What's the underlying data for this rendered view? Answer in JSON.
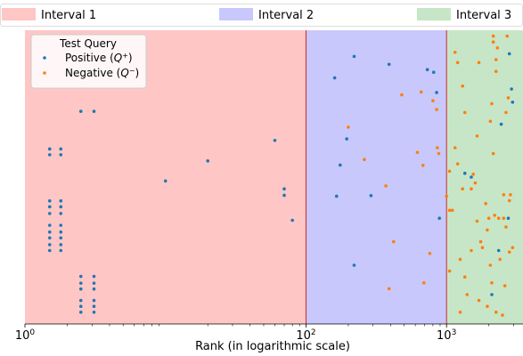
{
  "chart_data": {
    "type": "scatter",
    "xscale": "log",
    "xlim": [
      1,
      3500
    ],
    "ylim": [
      0,
      1
    ],
    "xlabel": "Rank (in logarithmic scale)",
    "ylabel": "",
    "x_ticks": [
      {
        "value": 1,
        "base": "10",
        "exp": "0"
      },
      {
        "value": 100,
        "base": "10",
        "exp": "2"
      },
      {
        "value": 1000,
        "base": "10",
        "exp": "3"
      }
    ],
    "intervals": [
      {
        "name": "Interval 1",
        "from": 1,
        "to": 100,
        "fill": "#ffc6c6"
      },
      {
        "name": "Interval 2",
        "from": 100,
        "to": 1000,
        "fill": "#c8c8fc"
      },
      {
        "name": "Interval 3",
        "from": 1000,
        "to": 3500,
        "fill": "#c7e6c7"
      }
    ],
    "boundary_color": "#d62728",
    "legend": {
      "title": "Test Query",
      "placement": "top-left",
      "entries": [
        {
          "series": "positive",
          "base": "Positive (",
          "sym": "Q",
          "sup": "+",
          "close": ")"
        },
        {
          "series": "negative",
          "base": "Negative (",
          "sym": "Q",
          "sup": "−",
          "close": ")"
        }
      ]
    },
    "series": [
      {
        "key": "positive",
        "color": "#1f77b4",
        "points": [
          [
            1.5,
            0.596
          ],
          [
            1.5,
            0.576
          ],
          [
            1.8,
            0.596
          ],
          [
            1.8,
            0.576
          ],
          [
            1.5,
            0.419
          ],
          [
            1.5,
            0.399
          ],
          [
            1.5,
            0.376
          ],
          [
            1.8,
            0.419
          ],
          [
            1.8,
            0.399
          ],
          [
            1.8,
            0.376
          ],
          [
            1.5,
            0.336
          ],
          [
            1.5,
            0.313
          ],
          [
            1.5,
            0.293
          ],
          [
            1.5,
            0.27
          ],
          [
            1.5,
            0.25
          ],
          [
            1.8,
            0.336
          ],
          [
            1.8,
            0.313
          ],
          [
            1.8,
            0.293
          ],
          [
            1.8,
            0.27
          ],
          [
            1.8,
            0.25
          ],
          [
            2.5,
            0.724
          ],
          [
            3.1,
            0.724
          ],
          [
            2.5,
            0.162
          ],
          [
            2.5,
            0.139
          ],
          [
            2.5,
            0.119
          ],
          [
            2.5,
            0.08
          ],
          [
            2.5,
            0.06
          ],
          [
            2.5,
            0.04
          ],
          [
            3.1,
            0.162
          ],
          [
            3.1,
            0.139
          ],
          [
            3.1,
            0.119
          ],
          [
            3.1,
            0.08
          ],
          [
            3.1,
            0.06
          ],
          [
            3.1,
            0.04
          ],
          [
            10,
            0.487
          ],
          [
            20,
            0.555
          ],
          [
            60,
            0.625
          ],
          [
            70,
            0.46
          ],
          [
            70,
            0.438
          ],
          [
            80,
            0.353
          ],
          [
            220,
            0.911
          ],
          [
            390,
            0.884
          ],
          [
            730,
            0.866
          ],
          [
            810,
            0.857
          ],
          [
            850,
            0.788
          ],
          [
            160,
            0.838
          ],
          [
            195,
            0.63
          ],
          [
            175,
            0.541
          ],
          [
            165,
            0.435
          ],
          [
            290,
            0.437
          ],
          [
            890,
            0.36
          ],
          [
            220,
            0.2
          ],
          [
            2950,
            0.755
          ],
          [
            2450,
            0.68
          ],
          [
            1350,
            0.513
          ],
          [
            1500,
            0.5
          ],
          [
            2750,
            0.36
          ],
          [
            2100,
            0.1
          ],
          [
            2350,
            0.25
          ],
          [
            2900,
            0.8
          ],
          [
            2800,
            0.92
          ]
        ]
      },
      {
        "key": "negative",
        "color": "#ff7f0e",
        "points": [
          [
            2150,
            0.98
          ],
          [
            2150,
            0.96
          ],
          [
            2700,
            0.98
          ],
          [
            2300,
            0.94
          ],
          [
            2250,
            0.9
          ],
          [
            1700,
            0.89
          ],
          [
            1150,
            0.925
          ],
          [
            1200,
            0.89
          ],
          [
            2250,
            0.86
          ],
          [
            1300,
            0.81
          ],
          [
            2750,
            0.77
          ],
          [
            2100,
            0.75
          ],
          [
            1350,
            0.72
          ],
          [
            2650,
            0.72
          ],
          [
            2050,
            0.69
          ],
          [
            1650,
            0.64
          ],
          [
            1150,
            0.6
          ],
          [
            2150,
            0.58
          ],
          [
            1200,
            0.545
          ],
          [
            1550,
            0.51
          ],
          [
            1500,
            0.46
          ],
          [
            1600,
            0.48
          ],
          [
            2850,
            0.44
          ],
          [
            2550,
            0.44
          ],
          [
            1900,
            0.41
          ],
          [
            2800,
            0.42
          ],
          [
            1300,
            0.46
          ],
          [
            1000,
            0.435
          ],
          [
            1050,
            0.387
          ],
          [
            1100,
            0.387
          ],
          [
            2000,
            0.36
          ],
          [
            2200,
            0.37
          ],
          [
            2350,
            0.36
          ],
          [
            2550,
            0.36
          ],
          [
            1650,
            0.35
          ],
          [
            2650,
            0.33
          ],
          [
            1950,
            0.32
          ],
          [
            1750,
            0.28
          ],
          [
            2950,
            0.26
          ],
          [
            1800,
            0.26
          ],
          [
            1500,
            0.25
          ],
          [
            2800,
            0.245
          ],
          [
            1250,
            0.22
          ],
          [
            2400,
            0.22
          ],
          [
            2050,
            0.2
          ],
          [
            1050,
            0.18
          ],
          [
            1350,
            0.16
          ],
          [
            2100,
            0.14
          ],
          [
            2600,
            0.13
          ],
          [
            1400,
            0.1
          ],
          [
            1700,
            0.08
          ],
          [
            1950,
            0.06
          ],
          [
            2250,
            0.04
          ],
          [
            2500,
            0.03
          ],
          [
            1250,
            0.04
          ],
          [
            800,
            0.76
          ],
          [
            850,
            0.73
          ],
          [
            860,
            0.6
          ],
          [
            620,
            0.584
          ],
          [
            1050,
            0.52
          ],
          [
            880,
            0.58
          ],
          [
            680,
            0.54
          ],
          [
            760,
            0.24
          ],
          [
            690,
            0.14
          ],
          [
            390,
            0.12
          ],
          [
            420,
            0.28
          ],
          [
            200,
            0.67
          ],
          [
            370,
            0.47
          ],
          [
            480,
            0.78
          ],
          [
            660,
            0.79
          ],
          [
            260,
            0.56
          ]
        ]
      }
    ]
  }
}
